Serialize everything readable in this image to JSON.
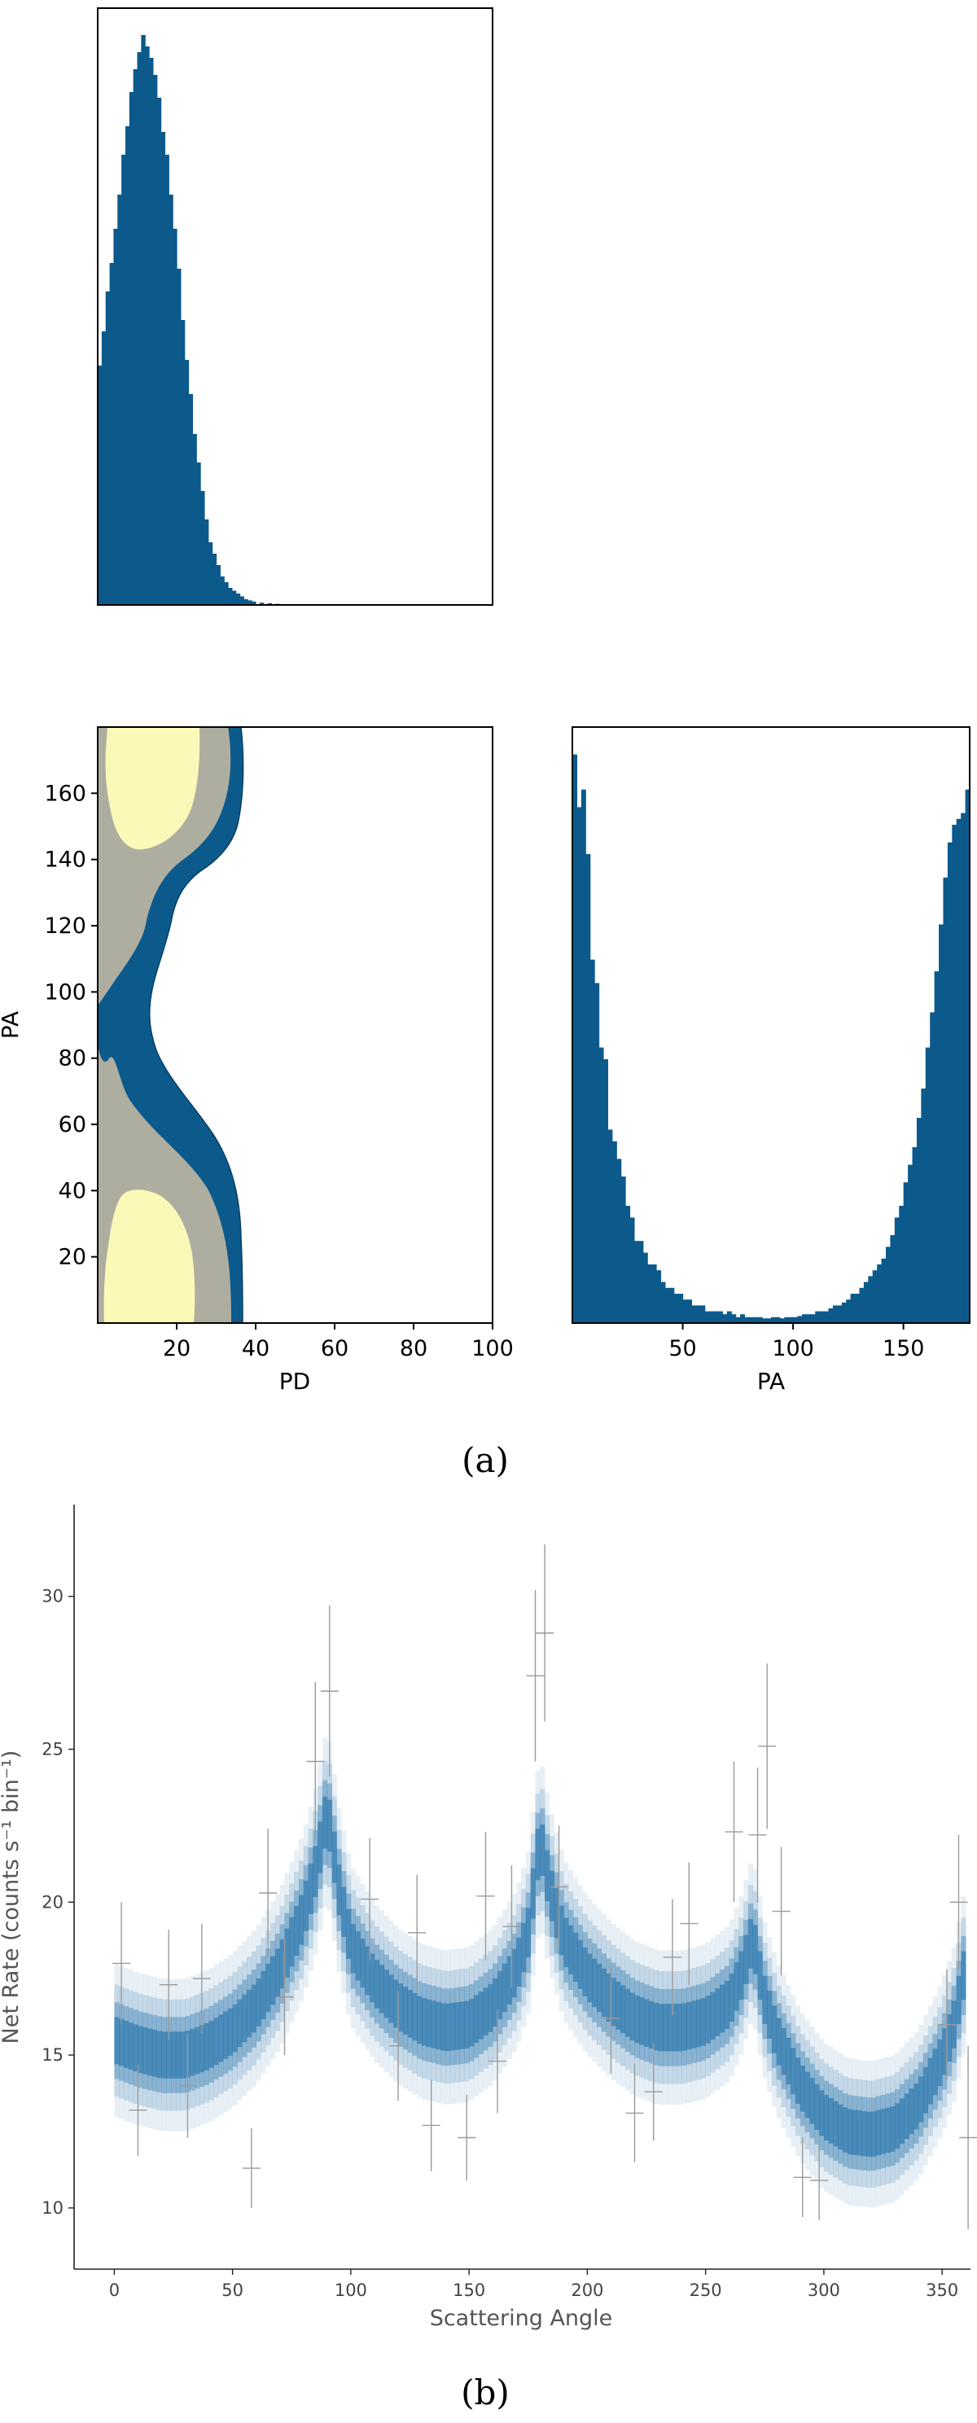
{
  "colors": {
    "blue": "#0c5a8c",
    "gray": "#aeaea0",
    "yellow": "#fbf9b8",
    "errorbar": "#9a9a9a"
  },
  "captions": {
    "a": "(a)",
    "b": "(b)"
  },
  "chart_data": [
    {
      "type": "histogram",
      "panel": "top-left",
      "xlabel": "",
      "ylabel": "",
      "xlim": [
        0,
        100
      ],
      "y_ticks_shown": false,
      "x_ticks_shown": false,
      "description_values": {
        "bin_width": 1,
        "x": [
          1,
          2,
          3,
          4,
          5,
          6,
          7,
          8,
          9,
          10,
          11,
          12,
          13,
          14,
          15,
          16,
          17,
          18,
          19,
          20,
          21,
          22,
          23,
          24,
          25,
          26,
          27,
          28,
          29,
          30,
          31,
          32,
          33,
          34,
          35,
          36,
          37,
          38,
          39,
          40,
          42,
          44,
          46,
          48
        ],
        "counts": [
          0.42,
          0.48,
          0.55,
          0.6,
          0.66,
          0.72,
          0.79,
          0.84,
          0.9,
          0.94,
          0.97,
          1.0,
          0.98,
          0.96,
          0.93,
          0.89,
          0.83,
          0.79,
          0.72,
          0.66,
          0.59,
          0.5,
          0.43,
          0.37,
          0.3,
          0.25,
          0.2,
          0.15,
          0.11,
          0.09,
          0.07,
          0.05,
          0.04,
          0.03,
          0.025,
          0.02,
          0.015,
          0.01,
          0.008,
          0.006,
          0.004,
          0.003,
          0.002,
          0.001
        ]
      }
    },
    {
      "type": "contour",
      "panel": "bottom-left",
      "xlabel": "PD",
      "ylabel": "PA",
      "xlim": [
        0,
        100
      ],
      "ylim": [
        0,
        180
      ],
      "x_ticks": [
        "20",
        "40",
        "60",
        "80",
        "100"
      ],
      "y_ticks": [
        "20",
        "40",
        "60",
        "80",
        "100",
        "120",
        "140",
        "160"
      ],
      "levels": [
        {
          "name": "outer",
          "color": "blue"
        },
        {
          "name": "middle",
          "color": "gray"
        },
        {
          "name": "inner",
          "color": "yellow"
        }
      ]
    },
    {
      "type": "histogram",
      "panel": "bottom-right",
      "xlabel": "PA",
      "xlim": [
        0,
        180
      ],
      "x_ticks": [
        "50",
        "100",
        "150"
      ],
      "bin_width": 2,
      "counts": [
        0.97,
        0.88,
        0.91,
        0.8,
        0.62,
        0.58,
        0.47,
        0.45,
        0.33,
        0.31,
        0.28,
        0.25,
        0.2,
        0.18,
        0.14,
        0.14,
        0.12,
        0.1,
        0.1,
        0.09,
        0.07,
        0.06,
        0.06,
        0.05,
        0.05,
        0.04,
        0.04,
        0.03,
        0.03,
        0.03,
        0.02,
        0.02,
        0.02,
        0.02,
        0.015,
        0.02,
        0.015,
        0.01,
        0.015,
        0.01,
        0.01,
        0.01,
        0.01,
        0.008,
        0.008,
        0.01,
        0.01,
        0.008,
        0.01,
        0.01,
        0.01,
        0.012,
        0.015,
        0.015,
        0.015,
        0.02,
        0.02,
        0.02,
        0.025,
        0.03,
        0.03,
        0.035,
        0.04,
        0.05,
        0.05,
        0.06,
        0.07,
        0.08,
        0.09,
        0.1,
        0.11,
        0.13,
        0.15,
        0.18,
        0.2,
        0.24,
        0.27,
        0.3,
        0.35,
        0.4,
        0.47,
        0.53,
        0.6,
        0.68,
        0.76,
        0.82,
        0.85,
        0.86,
        0.87,
        0.91
      ]
    },
    {
      "type": "scatter",
      "panel": "b",
      "xlabel": "Scattering Angle",
      "ylabel": "Net Rate (counts s⁻¹ bin⁻¹)",
      "xlim": [
        -17,
        362
      ],
      "ylim": [
        8.0,
        33.0
      ],
      "x_ticks": [
        "0",
        "50",
        "100",
        "150",
        "200",
        "250",
        "300",
        "350"
      ],
      "y_ticks": [
        "10",
        "15",
        "20",
        "25",
        "30"
      ],
      "model_band": {
        "x": [
          0,
          10,
          20,
          30,
          40,
          50,
          60,
          70,
          80,
          85,
          90,
          92,
          95,
          100,
          110,
          120,
          130,
          140,
          150,
          160,
          170,
          175,
          180,
          182,
          185,
          190,
          200,
          210,
          220,
          230,
          240,
          250,
          260,
          265,
          270,
          272,
          275,
          280,
          290,
          300,
          310,
          320,
          330,
          340,
          350,
          355,
          360
        ],
        "y": [
          15.5,
          15.2,
          15.0,
          15.0,
          15.3,
          15.8,
          16.6,
          17.8,
          19.6,
          21.0,
          23.0,
          22.0,
          20.4,
          18.6,
          17.4,
          16.6,
          16.1,
          15.9,
          16.0,
          16.6,
          17.8,
          19.0,
          22.2,
          21.2,
          20.2,
          18.8,
          17.6,
          16.8,
          16.2,
          15.9,
          15.9,
          16.1,
          16.7,
          17.6,
          18.9,
          18.0,
          16.8,
          15.6,
          14.0,
          13.0,
          12.5,
          12.4,
          12.6,
          13.4,
          14.9,
          16.0,
          18.0
        ]
      },
      "points": [
        {
          "x": 3,
          "y": 18.0,
          "err": 2.0
        },
        {
          "x": 10,
          "y": 13.2,
          "err": 1.5
        },
        {
          "x": 23,
          "y": 17.3,
          "err": 1.8
        },
        {
          "x": 31,
          "y": 14.0,
          "err": 1.7
        },
        {
          "x": 37,
          "y": 17.5,
          "err": 1.8
        },
        {
          "x": 58,
          "y": 11.3,
          "err": 1.3
        },
        {
          "x": 65,
          "y": 20.3,
          "err": 2.1
        },
        {
          "x": 72,
          "y": 16.9,
          "err": 1.9
        },
        {
          "x": 85,
          "y": 24.6,
          "err": 2.6
        },
        {
          "x": 91,
          "y": 26.9,
          "err": 2.8
        },
        {
          "x": 108,
          "y": 20.1,
          "err": 2.0
        },
        {
          "x": 120,
          "y": 15.3,
          "err": 1.8
        },
        {
          "x": 128,
          "y": 19.0,
          "err": 1.9
        },
        {
          "x": 134,
          "y": 12.7,
          "err": 1.5
        },
        {
          "x": 149,
          "y": 12.3,
          "err": 1.4
        },
        {
          "x": 157,
          "y": 20.2,
          "err": 2.1
        },
        {
          "x": 162,
          "y": 14.8,
          "err": 1.7
        },
        {
          "x": 168,
          "y": 19.2,
          "err": 2.0
        },
        {
          "x": 178,
          "y": 27.4,
          "err": 2.8
        },
        {
          "x": 182,
          "y": 28.8,
          "err": 2.9
        },
        {
          "x": 188,
          "y": 20.5,
          "err": 2.0
        },
        {
          "x": 210,
          "y": 16.2,
          "err": 1.8
        },
        {
          "x": 220,
          "y": 13.1,
          "err": 1.6
        },
        {
          "x": 228,
          "y": 13.8,
          "err": 1.6
        },
        {
          "x": 236,
          "y": 18.2,
          "err": 1.9
        },
        {
          "x": 243,
          "y": 19.3,
          "err": 2.0
        },
        {
          "x": 262,
          "y": 22.3,
          "err": 2.3
        },
        {
          "x": 272,
          "y": 22.2,
          "err": 2.2
        },
        {
          "x": 276,
          "y": 25.1,
          "err": 2.7
        },
        {
          "x": 282,
          "y": 19.7,
          "err": 2.1
        },
        {
          "x": 291,
          "y": 11.0,
          "err": 1.3
        },
        {
          "x": 298,
          "y": 10.9,
          "err": 1.3
        },
        {
          "x": 352,
          "y": 16.0,
          "err": 1.8
        },
        {
          "x": 357,
          "y": 20.0,
          "err": 2.2
        },
        {
          "x": 361,
          "y": 12.3,
          "err": 3.0
        }
      ]
    }
  ]
}
